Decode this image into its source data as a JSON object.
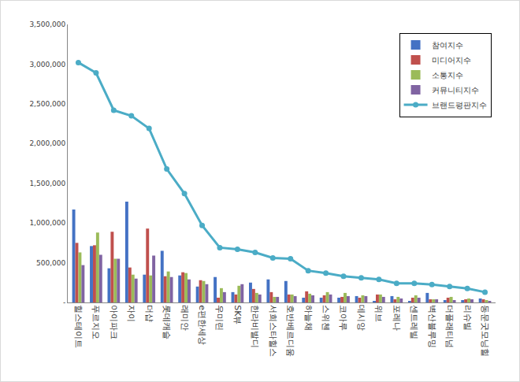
{
  "chart_data": {
    "type": "bar",
    "categories": [
      "힐스테이트",
      "푸르지오",
      "아이파크",
      "자이",
      "더샵",
      "롯데캐슬",
      "래미안",
      "e편한세상",
      "우미린",
      "SK뷰",
      "한라비발디",
      "서희스타힐스",
      "호반베르디움",
      "하늘채",
      "스위첸",
      "코아루",
      "데시앙",
      "위브",
      "포레나",
      "센트레빌",
      "벽산블루밍",
      "더플래티넘",
      "리슈빌",
      "동문굿모닝힐"
    ],
    "series": [
      {
        "name": "참여지수",
        "type": "bar",
        "color": "#4472C4",
        "values": [
          1170000,
          710000,
          430000,
          1270000,
          350000,
          650000,
          340000,
          200000,
          320000,
          130000,
          250000,
          290000,
          270000,
          60000,
          60000,
          60000,
          80000,
          20000,
          80000,
          20000,
          120000,
          30000,
          30000,
          50000
        ]
      },
      {
        "name": "미디어지수",
        "type": "bar",
        "color": "#C0504D",
        "values": [
          750000,
          720000,
          890000,
          440000,
          930000,
          330000,
          380000,
          280000,
          60000,
          100000,
          170000,
          130000,
          100000,
          140000,
          90000,
          70000,
          60000,
          100000,
          40000,
          60000,
          40000,
          60000,
          40000,
          40000
        ]
      },
      {
        "name": "소통지수",
        "type": "bar",
        "color": "#9BBB59",
        "values": [
          630000,
          880000,
          550000,
          350000,
          340000,
          390000,
          370000,
          270000,
          180000,
          210000,
          120000,
          70000,
          100000,
          110000,
          130000,
          120000,
          90000,
          100000,
          70000,
          90000,
          40000,
          70000,
          50000,
          30000
        ]
      },
      {
        "name": "커뮤니티지수",
        "type": "bar",
        "color": "#8064A2",
        "values": [
          470000,
          600000,
          550000,
          300000,
          590000,
          320000,
          290000,
          230000,
          130000,
          230000,
          100000,
          70000,
          80000,
          90000,
          100000,
          80000,
          80000,
          70000,
          50000,
          60000,
          40000,
          30000,
          40000,
          20000
        ]
      },
      {
        "name": "브랜드평판지수",
        "type": "line",
        "color": "#4BACC6",
        "marker": "circle",
        "values": [
          3020000,
          2890000,
          2420000,
          2350000,
          2190000,
          1680000,
          1370000,
          970000,
          690000,
          670000,
          630000,
          560000,
          550000,
          400000,
          370000,
          330000,
          310000,
          290000,
          240000,
          240000,
          225000,
          200000,
          175000,
          130000
        ]
      }
    ],
    "ylim": [
      0,
      3500000
    ],
    "yticks": [
      {
        "value": 0,
        "label": "-"
      },
      {
        "value": 500000,
        "label": "500,000"
      },
      {
        "value": 1000000,
        "label": "1,000,000"
      },
      {
        "value": 1500000,
        "label": "1,500,000"
      },
      {
        "value": 2000000,
        "label": "2,000,000"
      },
      {
        "value": 2500000,
        "label": "2,500,000"
      },
      {
        "value": 3000000,
        "label": "3,000,000"
      },
      {
        "value": 3500000,
        "label": "3,500,000"
      }
    ],
    "grid": false,
    "legend": "upper right"
  }
}
